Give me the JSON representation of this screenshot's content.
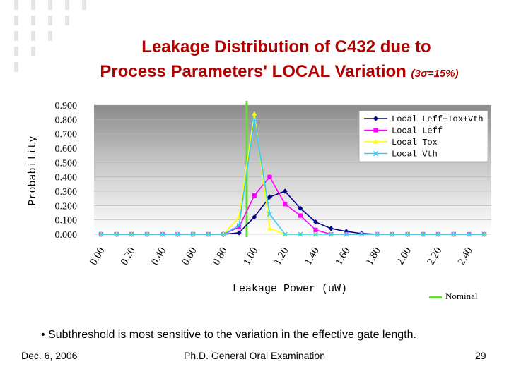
{
  "title": {
    "line1": "Leakage Distribution of C432  due to",
    "line2": "Process Parameters' LOCAL Variation",
    "sigma_note": "(3σ=15%)"
  },
  "chart_data": {
    "type": "line",
    "xlabel": "Leakage Power (uW)",
    "ylabel": "Probability",
    "ylim": [
      0,
      0.9
    ],
    "xlim": [
      0,
      2.5
    ],
    "grid": true,
    "legend_position": "top-right",
    "x": [
      0.0,
      0.1,
      0.2,
      0.3,
      0.4,
      0.5,
      0.6,
      0.7,
      0.8,
      0.9,
      1.0,
      1.1,
      1.2,
      1.3,
      1.4,
      1.5,
      1.6,
      1.7,
      1.8,
      1.9,
      2.0,
      2.1,
      2.2,
      2.3,
      2.4,
      2.5
    ],
    "x_ticks": [
      "0.00",
      "0.20",
      "0.40",
      "0.60",
      "0.80",
      "1.00",
      "1.20",
      "1.40",
      "1.60",
      "1.80",
      "2.00",
      "2.20",
      "2.40"
    ],
    "y_ticks": [
      "0.000",
      "0.100",
      "0.200",
      "0.300",
      "0.400",
      "0.500",
      "0.600",
      "0.700",
      "0.800",
      "0.900"
    ],
    "series": [
      {
        "name": "Local Leff+Tox+Vth",
        "color": "#00008b",
        "marker": "diamond",
        "values": [
          0,
          0,
          0,
          0,
          0,
          0,
          0,
          0,
          0,
          0.01,
          0.12,
          0.26,
          0.3,
          0.18,
          0.085,
          0.04,
          0.02,
          0.005,
          0,
          0,
          0,
          0,
          0,
          0,
          0,
          0
        ]
      },
      {
        "name": "Local Leff",
        "color": "#ff00ff",
        "marker": "square",
        "values": [
          0,
          0,
          0,
          0,
          0,
          0,
          0,
          0,
          0,
          0.05,
          0.27,
          0.4,
          0.21,
          0.13,
          0.03,
          0,
          0,
          0,
          0,
          0,
          0,
          0,
          0,
          0,
          0,
          0
        ]
      },
      {
        "name": "Local Tox",
        "color": "#ffff00",
        "marker": "triangle",
        "values": [
          0,
          0,
          0,
          0,
          0,
          0,
          0,
          0,
          0,
          0.12,
          0.84,
          0.04,
          0,
          0,
          0,
          0,
          0,
          0,
          0,
          0,
          0,
          0,
          0,
          0,
          0,
          0
        ]
      },
      {
        "name": "Local Vth",
        "color": "#33ccff",
        "marker": "x",
        "values": [
          0,
          0,
          0,
          0,
          0,
          0,
          0,
          0,
          0,
          0.06,
          0.8,
          0.14,
          0,
          0,
          0,
          0,
          0,
          0,
          0,
          0,
          0,
          0,
          0,
          0,
          0,
          0
        ]
      }
    ],
    "nominal_x": 0.95,
    "nominal_label": "Nominal",
    "nominal_color": "#66dd33"
  },
  "bullet": "• Subthreshold is most sensitive to the variation in the effective gate length.",
  "footer": {
    "date": "Dec. 6, 2006",
    "event": "Ph.D. General Oral Examination",
    "page": "29"
  }
}
